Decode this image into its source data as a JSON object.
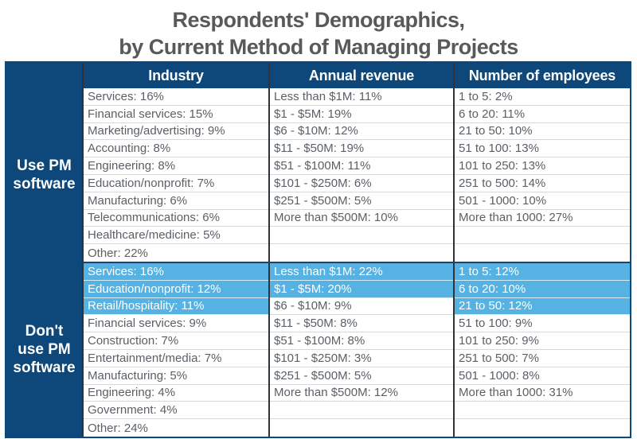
{
  "title": {
    "line1": "Respondents' Demographics,",
    "line2": "by Current Method of Managing Projects"
  },
  "colors": {
    "navy": "#0E4779",
    "highlight_blue": "#55B2E2",
    "title_gray": "#58595B",
    "cell_text_gray": "#5A6066",
    "row_divider": "#D8D8D8",
    "column_divider": "#2E3338"
  },
  "table": {
    "columns": [
      "Industry",
      "Annual revenue",
      "Number of employees"
    ],
    "sections": [
      {
        "label": "Use PM software",
        "columns": [
          {
            "cells": [
              {
                "text": "Services: 16%",
                "highlight": false
              },
              {
                "text": "Financial services: 15%",
                "highlight": false
              },
              {
                "text": "Marketing/advertising: 9%",
                "highlight": false
              },
              {
                "text": "Accounting: 8%",
                "highlight": false
              },
              {
                "text": "Engineering: 8%",
                "highlight": false
              },
              {
                "text": "Education/nonprofit: 7%",
                "highlight": false
              },
              {
                "text": "Manufacturing: 6%",
                "highlight": false
              },
              {
                "text": "Telecommunications: 6%",
                "highlight": false
              },
              {
                "text": "Healthcare/medicine: 5%",
                "highlight": false
              },
              {
                "text": "Other: 22%",
                "highlight": false
              }
            ]
          },
          {
            "cells": [
              {
                "text": "Less than $1M: 11%",
                "highlight": false
              },
              {
                "text": "$1 - $5M: 19%",
                "highlight": false
              },
              {
                "text": "$6 - $10M: 12%",
                "highlight": false
              },
              {
                "text": "$11 - $50M: 19%",
                "highlight": false
              },
              {
                "text": "$51 - $100M: 11%",
                "highlight": false
              },
              {
                "text": "$101 - $250M: 6%",
                "highlight": false
              },
              {
                "text": "$251 - $500M: 5%",
                "highlight": false
              },
              {
                "text": "More than $500M: 10%",
                "highlight": false
              },
              {
                "text": "",
                "highlight": false
              },
              {
                "text": "",
                "highlight": false
              }
            ]
          },
          {
            "cells": [
              {
                "text": "1 to 5: 2%",
                "highlight": false
              },
              {
                "text": "6 to 20: 11%",
                "highlight": false
              },
              {
                "text": "21 to 50: 10%",
                "highlight": false
              },
              {
                "text": "51 to 100: 13%",
                "highlight": false
              },
              {
                "text": "101 to 250: 13%",
                "highlight": false
              },
              {
                "text": "251 to 500: 14%",
                "highlight": false
              },
              {
                "text": "501 - 1000: 10%",
                "highlight": false
              },
              {
                "text": "More than 1000: 27%",
                "highlight": false
              },
              {
                "text": "",
                "highlight": false
              },
              {
                "text": "",
                "highlight": false
              }
            ]
          }
        ]
      },
      {
        "label": "Don't use PM software",
        "columns": [
          {
            "cells": [
              {
                "text": "Services: 16%",
                "highlight": true
              },
              {
                "text": "Education/nonprofit: 12%",
                "highlight": true
              },
              {
                "text": "Retail/hospitality: 11%",
                "highlight": true
              },
              {
                "text": "Financial services: 9%",
                "highlight": false
              },
              {
                "text": "Construction: 7%",
                "highlight": false
              },
              {
                "text": "Entertainment/media: 7%",
                "highlight": false
              },
              {
                "text": "Manufacturing: 5%",
                "highlight": false
              },
              {
                "text": "Engineering: 4%",
                "highlight": false
              },
              {
                "text": "Government: 4%",
                "highlight": false
              },
              {
                "text": "Other: 24%",
                "highlight": false
              }
            ]
          },
          {
            "cells": [
              {
                "text": "Less than $1M: 22%",
                "highlight": true
              },
              {
                "text": "$1 - $5M: 20%",
                "highlight": true
              },
              {
                "text": "$6 - $10M: 9%",
                "highlight": false
              },
              {
                "text": "$11 - $50M: 8%",
                "highlight": false
              },
              {
                "text": "$51 - $100M: 8%",
                "highlight": false
              },
              {
                "text": "$101 - $250M: 3%",
                "highlight": false
              },
              {
                "text": "$251 - $500M: 5%",
                "highlight": false
              },
              {
                "text": "More than $500M: 12%",
                "highlight": false
              },
              {
                "text": "",
                "highlight": false
              },
              {
                "text": "",
                "highlight": false
              }
            ]
          },
          {
            "cells": [
              {
                "text": "1 to 5: 12%",
                "highlight": true
              },
              {
                "text": "6 to 20: 10%",
                "highlight": true
              },
              {
                "text": "21 to 50: 12%",
                "highlight": true
              },
              {
                "text": "51 to 100: 9%",
                "highlight": false
              },
              {
                "text": "101 to 250: 9%",
                "highlight": false
              },
              {
                "text": "251 to 500: 7%",
                "highlight": false
              },
              {
                "text": "501 - 1000: 8%",
                "highlight": false
              },
              {
                "text": "More than 1000: 31%",
                "highlight": false
              },
              {
                "text": "",
                "highlight": false
              },
              {
                "text": "",
                "highlight": false
              }
            ]
          }
        ]
      }
    ]
  },
  "chart_data": {
    "type": "table",
    "title": "Respondents' Demographics, by Current Method of Managing Projects",
    "columns": [
      "Industry",
      "Annual revenue",
      "Number of employees"
    ],
    "groups": [
      {
        "name": "Use PM software",
        "industry_pct": {
          "Services": 16,
          "Financial services": 15,
          "Marketing/advertising": 9,
          "Accounting": 8,
          "Engineering": 8,
          "Education/nonprofit": 7,
          "Manufacturing": 6,
          "Telecommunications": 6,
          "Healthcare/medicine": 5,
          "Other": 22
        },
        "annual_revenue_pct": {
          "Less than $1M": 11,
          "$1 - $5M": 19,
          "$6 - $10M": 12,
          "$11 - $50M": 19,
          "$51 - $100M": 11,
          "$101 - $250M": 6,
          "$251 - $500M": 5,
          "More than $500M": 10
        },
        "employees_pct": {
          "1 to 5": 2,
          "6 to 20": 11,
          "21 to 50": 10,
          "51 to 100": 13,
          "101 to 250": 13,
          "251 to 500": 14,
          "501 - 1000": 10,
          "More than 1000": 27
        },
        "highlighted": {
          "industry": [],
          "annual_revenue": [],
          "employees": []
        }
      },
      {
        "name": "Don't use PM software",
        "industry_pct": {
          "Services": 16,
          "Education/nonprofit": 12,
          "Retail/hospitality": 11,
          "Financial services": 9,
          "Construction": 7,
          "Entertainment/media": 7,
          "Manufacturing": 5,
          "Engineering": 4,
          "Government": 4,
          "Other": 24
        },
        "annual_revenue_pct": {
          "Less than $1M": 22,
          "$1 - $5M": 20,
          "$6 - $10M": 9,
          "$11 - $50M": 8,
          "$51 - $100M": 8,
          "$101 - $250M": 3,
          "$251 - $500M": 5,
          "More than $500M": 12
        },
        "employees_pct": {
          "1 to 5": 12,
          "6 to 20": 10,
          "21 to 50": 12,
          "51 to 100": 9,
          "101 to 250": 9,
          "251 to 500": 7,
          "501 - 1000": 8,
          "More than 1000": 31
        },
        "highlighted": {
          "industry": [
            "Services",
            "Education/nonprofit",
            "Retail/hospitality"
          ],
          "annual_revenue": [
            "Less than $1M",
            "$1 - $5M"
          ],
          "employees": [
            "1 to 5",
            "6 to 20",
            "21 to 50"
          ]
        }
      }
    ]
  }
}
